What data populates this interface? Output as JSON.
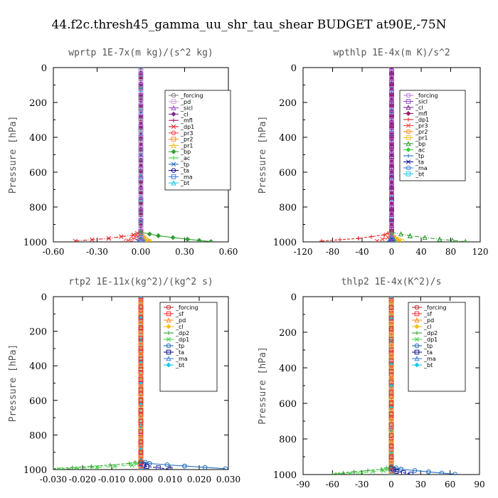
{
  "page": {
    "suptitle": "44.f2c.thresh45_gamma_uu_shr_tau_shear  BUDGET at90E,-75N"
  },
  "chart_data": [
    {
      "type": "line",
      "title": "wprtp  1E-7x(m kg)/(s^2 kg)",
      "ylabel": "Pressure [hPa]",
      "xlim": [
        -0.6,
        0.6
      ],
      "ylim": [
        1000,
        0
      ],
      "xticks": [
        "-0.60",
        "-0.30",
        "0.00",
        "0.30",
        "0.60"
      ],
      "yticks": [
        "0",
        "200",
        "400",
        "600",
        "800",
        "1000"
      ],
      "legend_position": "top-right",
      "series": [
        {
          "name": "_forcing",
          "color": "#808080",
          "x": [
            0,
            0,
            0,
            0,
            0
          ],
          "y": [
            0,
            250,
            500,
            750,
            1000
          ]
        },
        {
          "name": "_pd",
          "color": "#d8a0e0",
          "x": [
            0,
            0,
            0,
            0,
            0
          ],
          "y": [
            0,
            250,
            500,
            750,
            1000
          ]
        },
        {
          "name": "_sicl",
          "color": "#9a4fc8",
          "x": [
            0,
            0,
            0,
            0,
            0
          ],
          "y": [
            0,
            250,
            500,
            750,
            1000
          ]
        },
        {
          "name": "_cl",
          "color": "#7a2a8a",
          "x": [
            0,
            0,
            0,
            0,
            0
          ],
          "y": [
            0,
            250,
            500,
            750,
            1000
          ]
        },
        {
          "name": "_mfl",
          "color": "#a01a6a",
          "x": [
            0,
            0,
            0,
            0,
            0
          ],
          "y": [
            0,
            250,
            500,
            750,
            1000
          ]
        },
        {
          "name": "_dp1",
          "color": "#e02020",
          "x": [
            0,
            -0.05,
            -0.22,
            -0.45
          ],
          "y": [
            940,
            960,
            980,
            995
          ]
        },
        {
          "name": "_pr3",
          "color": "#ff4040",
          "x": [
            0,
            -0.03,
            -0.1
          ],
          "y": [
            950,
            975,
            995
          ]
        },
        {
          "name": "_pr2",
          "color": "#ff9020",
          "x": [
            0,
            0.02,
            0.05
          ],
          "y": [
            960,
            980,
            998
          ]
        },
        {
          "name": "_pr1",
          "color": "#f0c020",
          "x": [
            0,
            0.03,
            0.07
          ],
          "y": [
            965,
            985,
            998
          ]
        },
        {
          "name": "_bp",
          "color": "#30a030",
          "x": [
            0,
            0.12,
            0.32,
            0.48
          ],
          "y": [
            945,
            965,
            985,
            998
          ]
        },
        {
          "name": "_ac",
          "color": "#40d040",
          "x": [
            0,
            0.02
          ],
          "y": [
            970,
            995
          ]
        },
        {
          "name": "_tp",
          "color": "#2070c0",
          "x": [
            0,
            -0.02
          ],
          "y": [
            970,
            995
          ]
        },
        {
          "name": "_ta",
          "color": "#101090",
          "x": [
            0,
            0.01
          ],
          "y": [
            975,
            998
          ]
        },
        {
          "name": "_ma",
          "color": "#4080e0",
          "x": [
            0,
            0.01
          ],
          "y": [
            975,
            998
          ]
        },
        {
          "name": "_bt",
          "color": "#20c8e8",
          "x": [
            0,
            0
          ],
          "y": [
            0,
            1000
          ]
        }
      ]
    },
    {
      "type": "line",
      "title": "wpthlp  1E-4x(m K)/s^2",
      "ylabel": "Pressure [hPa]",
      "xlim": [
        -120,
        120
      ],
      "ylim": [
        1000,
        0
      ],
      "xticks": [
        "-120",
        "-80",
        "-40",
        "0",
        "40",
        "80",
        "120"
      ],
      "yticks": [
        "0",
        "200",
        "400",
        "600",
        "800",
        "1000"
      ],
      "legend_position": "top-right",
      "series": [
        {
          "name": "_forcing",
          "color": "#c080e0",
          "x": [
            0,
            0,
            0,
            0,
            0
          ],
          "y": [
            0,
            250,
            500,
            750,
            1000
          ]
        },
        {
          "name": "_sicl",
          "color": "#9a4fc8",
          "x": [
            0,
            0,
            0,
            0,
            0
          ],
          "y": [
            0,
            250,
            500,
            750,
            1000
          ]
        },
        {
          "name": "_cl",
          "color": "#7a2a8a",
          "x": [
            0,
            0,
            0,
            0,
            0
          ],
          "y": [
            0,
            250,
            500,
            750,
            1000
          ]
        },
        {
          "name": "_mfl",
          "color": "#a01a6a",
          "x": [
            0,
            0,
            0,
            0,
            0
          ],
          "y": [
            0,
            250,
            500,
            750,
            1000
          ]
        },
        {
          "name": "_dp1",
          "color": "#e02020",
          "x": [
            0,
            -10,
            -45,
            -95
          ],
          "y": [
            940,
            960,
            980,
            995
          ]
        },
        {
          "name": "_pr3",
          "color": "#ff4040",
          "x": [
            0,
            -5,
            -20
          ],
          "y": [
            950,
            975,
            995
          ]
        },
        {
          "name": "_pr2",
          "color": "#ff9020",
          "x": [
            0,
            4,
            10
          ],
          "y": [
            960,
            980,
            998
          ]
        },
        {
          "name": "_pr1",
          "color": "#f0c020",
          "x": [
            0,
            6,
            14
          ],
          "y": [
            965,
            985,
            998
          ]
        },
        {
          "name": "_bp",
          "color": "#30a030",
          "x": [
            0,
            25,
            65,
            100
          ],
          "y": [
            945,
            965,
            985,
            998
          ]
        },
        {
          "name": "_ac",
          "color": "#40d040",
          "x": [
            0,
            4
          ],
          "y": [
            970,
            995
          ]
        },
        {
          "name": "_tp",
          "color": "#2070c0",
          "x": [
            0,
            -4
          ],
          "y": [
            970,
            995
          ]
        },
        {
          "name": "_ta",
          "color": "#101090",
          "x": [
            0,
            2
          ],
          "y": [
            975,
            998
          ]
        },
        {
          "name": "_ma",
          "color": "#4080e0",
          "x": [
            0,
            2
          ],
          "y": [
            975,
            998
          ]
        },
        {
          "name": "_bt",
          "color": "#20c8e8",
          "x": [
            0,
            0
          ],
          "y": [
            0,
            1000
          ]
        }
      ]
    },
    {
      "type": "line",
      "title": "rtp2  1E-11x(kg^2)/(kg^2 s)",
      "ylabel": "Pressure [hPa]",
      "xlim": [
        -0.03,
        0.03
      ],
      "ylim": [
        1000,
        0
      ],
      "xticks": [
        "-0.030",
        "-0.020",
        "-0.010",
        "0.000",
        "0.010",
        "0.020",
        "0.030"
      ],
      "yticks": [
        "0",
        "200",
        "400",
        "600",
        "800",
        "1000"
      ],
      "legend_position": "top-right",
      "series": [
        {
          "name": "_forcing",
          "color": "#c03030",
          "x": [
            0,
            0,
            0,
            0,
            0
          ],
          "y": [
            0,
            250,
            500,
            750,
            1000
          ]
        },
        {
          "name": "_sf",
          "color": "#ff3030",
          "x": [
            0,
            0,
            0,
            0,
            0
          ],
          "y": [
            0,
            250,
            500,
            750,
            1000
          ]
        },
        {
          "name": "_pd",
          "color": "#ff9020",
          "x": [
            0,
            0,
            0,
            0,
            0
          ],
          "y": [
            0,
            250,
            500,
            750,
            1000
          ]
        },
        {
          "name": "_cl",
          "color": "#f0c020",
          "x": [
            0,
            0
          ],
          "y": [
            0,
            1000
          ]
        },
        {
          "name": "_dp2",
          "color": "#30a030",
          "x": [
            0,
            -0.004,
            -0.017,
            -0.03
          ],
          "y": [
            950,
            965,
            982,
            995
          ]
        },
        {
          "name": "_dp1",
          "color": "#40d040",
          "x": [
            0,
            -0.003,
            -0.015,
            -0.028
          ],
          "y": [
            960,
            975,
            988,
            998
          ]
        },
        {
          "name": "_tp",
          "color": "#2070c0",
          "x": [
            0,
            0.003,
            0.015,
            0.029
          ],
          "y": [
            950,
            965,
            980,
            995
          ]
        },
        {
          "name": "_ta",
          "color": "#101090",
          "x": [
            0,
            0.002,
            0.01
          ],
          "y": [
            965,
            982,
            998
          ]
        },
        {
          "name": "_ma",
          "color": "#4080e0",
          "x": [
            0,
            0.001
          ],
          "y": [
            970,
            998
          ]
        },
        {
          "name": "_bt",
          "color": "#20c8e8",
          "x": [
            0,
            0
          ],
          "y": [
            0,
            1000
          ]
        }
      ]
    },
    {
      "type": "line",
      "title": "thlp2  1E-4x(K^2)/s",
      "ylabel": "Pressure [hPa]",
      "xlim": [
        -90,
        90
      ],
      "ylim": [
        1000,
        0
      ],
      "xticks": [
        "-90",
        "-60",
        "-30",
        "0",
        "30",
        "60",
        "90"
      ],
      "yticks": [
        "0",
        "200",
        "400",
        "600",
        "800",
        "1000"
      ],
      "legend_position": "top-right",
      "series": [
        {
          "name": "_forcing",
          "color": "#c03030",
          "x": [
            0,
            0,
            0,
            0,
            0
          ],
          "y": [
            0,
            250,
            500,
            750,
            1000
          ]
        },
        {
          "name": "_sf",
          "color": "#ff3030",
          "x": [
            0,
            0,
            0,
            0,
            0
          ],
          "y": [
            0,
            250,
            500,
            750,
            1000
          ]
        },
        {
          "name": "_pd",
          "color": "#ff9020",
          "x": [
            0,
            0,
            0,
            0,
            0
          ],
          "y": [
            0,
            250,
            500,
            750,
            1000
          ]
        },
        {
          "name": "_cl",
          "color": "#f0c020",
          "x": [
            0,
            0
          ],
          "y": [
            0,
            1000
          ]
        },
        {
          "name": "_dp2",
          "color": "#30a030",
          "x": [
            0,
            -10,
            -38,
            -60
          ],
          "y": [
            955,
            970,
            985,
            998
          ]
        },
        {
          "name": "_dp1",
          "color": "#40d040",
          "x": [
            0,
            -8,
            -30,
            -55
          ],
          "y": [
            965,
            978,
            990,
            998
          ]
        },
        {
          "name": "_tp",
          "color": "#2070c0",
          "x": [
            0,
            10,
            38,
            65
          ],
          "y": [
            955,
            970,
            985,
            998
          ]
        },
        {
          "name": "_ta",
          "color": "#101090",
          "x": [
            0,
            5,
            20
          ],
          "y": [
            965,
            982,
            998
          ]
        },
        {
          "name": "_ma",
          "color": "#4080e0",
          "x": [
            0,
            3
          ],
          "y": [
            970,
            998
          ]
        },
        {
          "name": "_bt",
          "color": "#20c8e8",
          "x": [
            0,
            0
          ],
          "y": [
            0,
            1000
          ]
        }
      ]
    }
  ]
}
